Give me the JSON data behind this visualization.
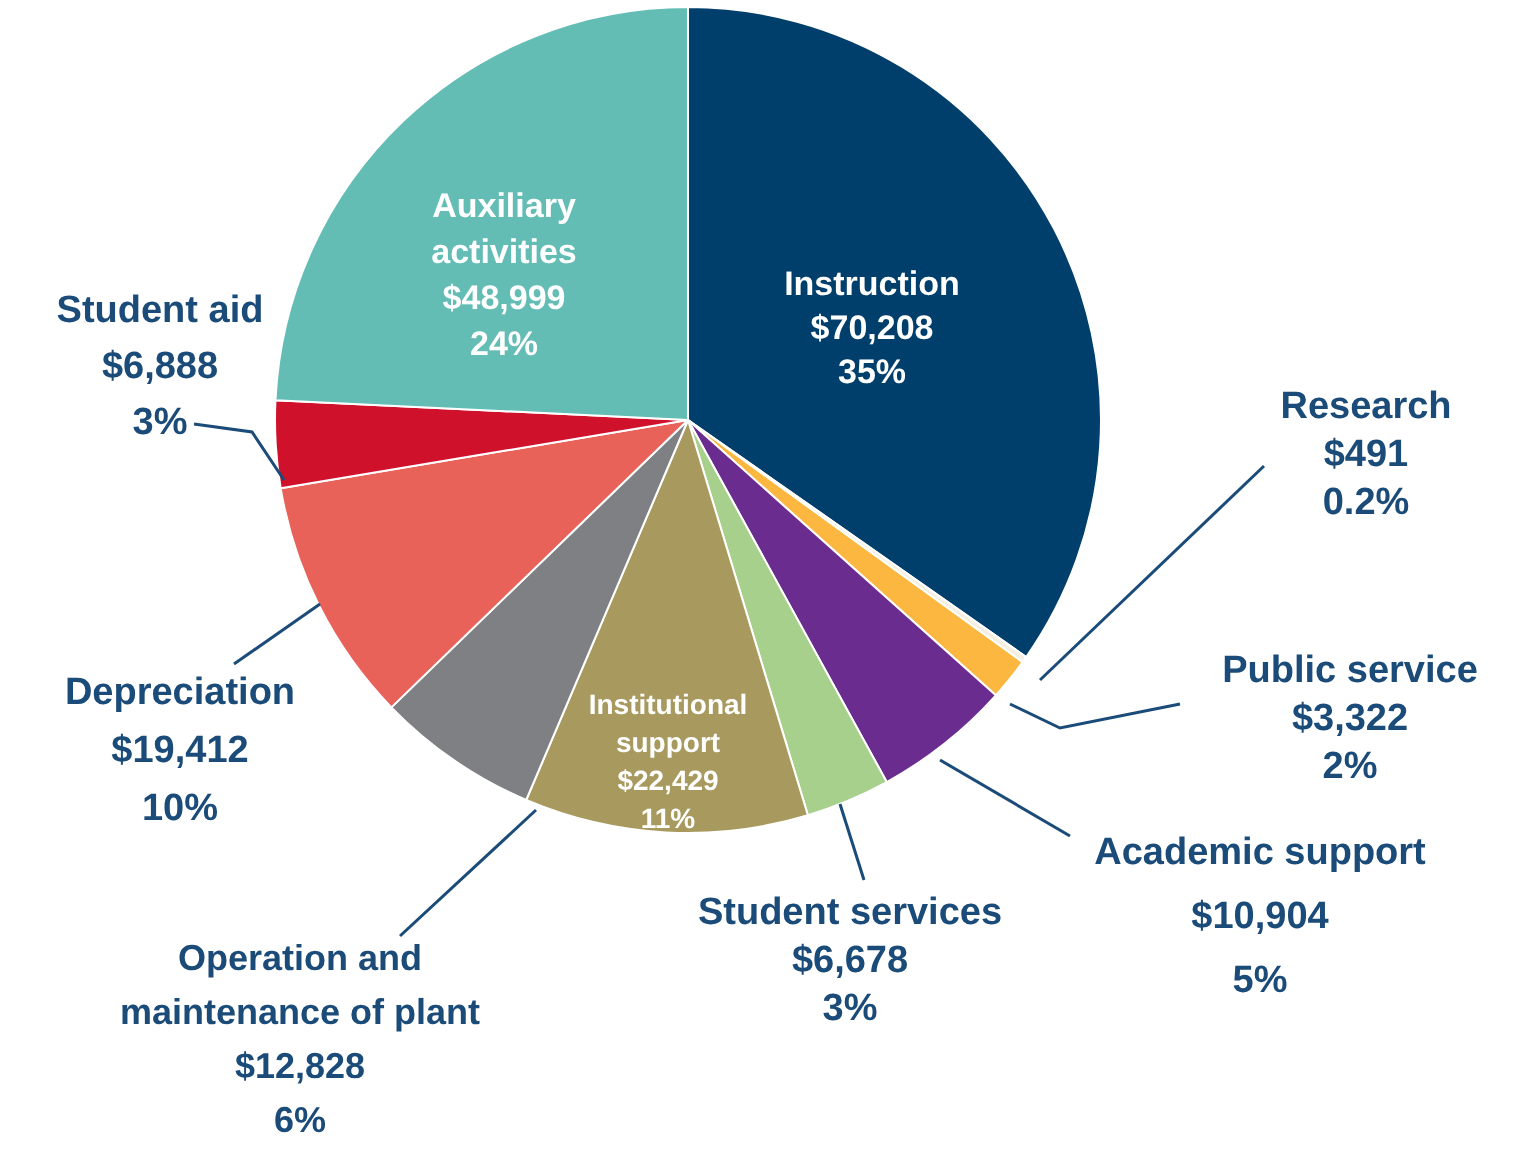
{
  "chart_data": {
    "type": "pie",
    "categories": [
      "Instruction",
      "Research",
      "Public service",
      "Academic support",
      "Student services",
      "Institutional support",
      "Operation and maintenance of plant",
      "Depreciation",
      "Student aid",
      "Auxiliary activities"
    ],
    "values": [
      70208,
      491,
      3322,
      10904,
      6678,
      22429,
      12828,
      19412,
      6888,
      48999
    ],
    "colors": [
      "#003f6b",
      "#f4efe0",
      "#fbb73f",
      "#6a2c8e",
      "#a8d08d",
      "#a89a5e",
      "#7f8083",
      "#e8625a",
      "#d0112b",
      "#63bdb5"
    ],
    "value_labels": [
      "$70,208\n35%",
      "$491\n0.2%",
      "$3,322\n2%",
      "$10,904\n5%",
      "$6,678\n3%",
      "$22,429\n11%",
      "$12,828\n6%",
      "$19,412\n10%",
      "$6,888\n3%",
      "$48,999\n24%"
    ],
    "legend": false
  }
}
